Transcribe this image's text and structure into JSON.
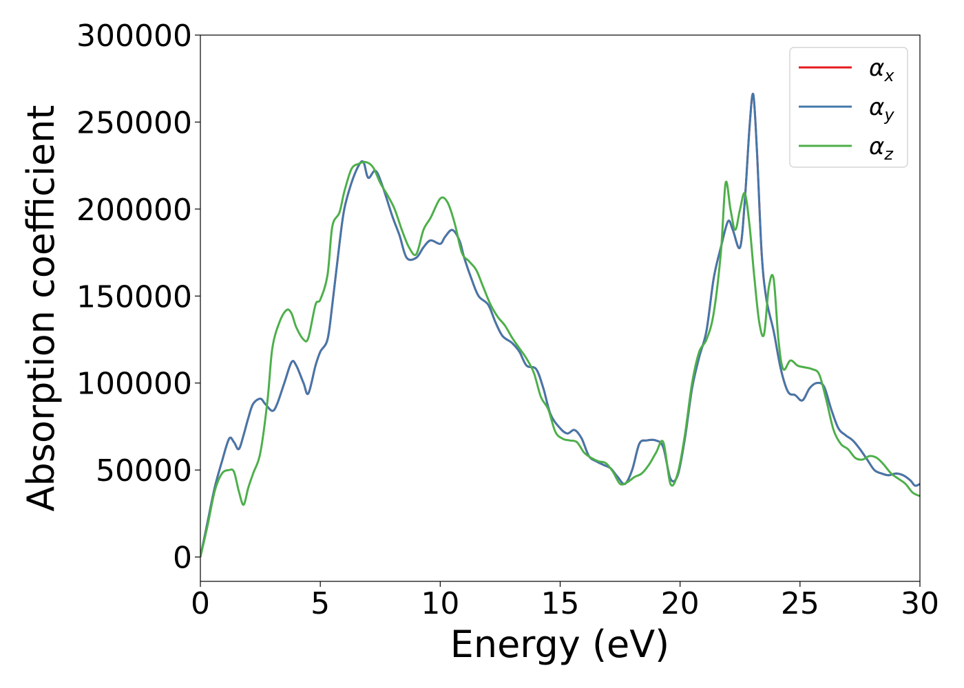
{
  "chart_data": {
    "type": "line",
    "title": "",
    "xlabel": "Energy (eV)",
    "ylabel": "Absorption coefficient",
    "xlim": [
      0,
      30
    ],
    "ylim": [
      -14000,
      300000
    ],
    "xticks": [
      0,
      5,
      10,
      15,
      20,
      25,
      30
    ],
    "xtick_labels": [
      "0",
      "5",
      "10",
      "15",
      "20",
      "25",
      "30"
    ],
    "yticks": [
      0,
      50000,
      100000,
      150000,
      200000,
      250000,
      300000
    ],
    "ytick_labels": [
      "0",
      "50000",
      "100000",
      "150000",
      "200000",
      "250000",
      "300000"
    ],
    "grid": false,
    "legend_position": "top-right",
    "series": [
      {
        "name": "α",
        "subscript": "x",
        "color": "#e41a1c",
        "x": [
          0,
          0.3,
          0.6,
          0.9,
          1.2,
          1.4,
          1.6,
          1.8,
          2.0,
          2.2,
          2.5,
          2.7,
          3.0,
          3.2,
          3.5,
          3.8,
          4.0,
          4.3,
          4.5,
          4.8,
          5.0,
          5.3,
          5.5,
          5.8,
          6.0,
          6.3,
          6.6,
          6.8,
          7.0,
          7.3,
          7.6,
          8.0,
          8.3,
          8.6,
          9.0,
          9.3,
          9.6,
          10.0,
          10.2,
          10.5,
          10.8,
          11.0,
          11.3,
          11.6,
          12.0,
          12.3,
          12.6,
          13.0,
          13.3,
          13.6,
          14.0,
          14.3,
          14.6,
          15.0,
          15.3,
          15.6,
          15.9,
          16.2,
          16.5,
          16.8,
          17.1,
          17.4,
          17.7,
          18.0,
          18.3,
          18.6,
          19.0,
          19.3,
          19.6,
          19.9,
          20.2,
          20.5,
          20.8,
          21.1,
          21.4,
          21.7,
          22.0,
          22.2,
          22.5,
          22.7,
          22.9,
          23.05,
          23.2,
          23.4,
          23.6,
          23.9,
          24.2,
          24.5,
          24.8,
          25.1,
          25.4,
          25.7,
          26.0,
          26.3,
          26.6,
          26.9,
          27.2,
          27.5,
          27.8,
          28.1,
          28.4,
          28.7,
          29.0,
          29.3,
          29.6,
          29.8,
          30.0
        ],
        "values": [
          0,
          20000,
          40000,
          55000,
          68000,
          66000,
          62000,
          70000,
          80000,
          88000,
          91000,
          88000,
          84000,
          88000,
          100000,
          112000,
          110000,
          100000,
          94000,
          110000,
          118000,
          125000,
          145000,
          180000,
          200000,
          215000,
          225000,
          227000,
          218000,
          222000,
          213000,
          196000,
          185000,
          172000,
          172000,
          178000,
          182000,
          180000,
          184000,
          188000,
          182000,
          172000,
          160000,
          150000,
          145000,
          135000,
          127000,
          123000,
          118000,
          110000,
          108000,
          97000,
          82000,
          74000,
          71000,
          73000,
          68000,
          58000,
          55000,
          53000,
          51000,
          46000,
          42000,
          50000,
          65000,
          67000,
          67000,
          63000,
          45000,
          47000,
          68000,
          97000,
          115000,
          130000,
          160000,
          178000,
          193000,
          188000,
          178000,
          205000,
          248000,
          266000,
          235000,
          175000,
          148000,
          130000,
          108000,
          95000,
          93000,
          90000,
          97000,
          100000,
          98000,
          85000,
          74000,
          70000,
          67000,
          62000,
          56000,
          50000,
          48000,
          47000,
          48000,
          47000,
          44000,
          41000,
          42000
        ]
      },
      {
        "name": "α",
        "subscript": "y",
        "color": "#4477aa",
        "x": [
          0,
          0.3,
          0.6,
          0.9,
          1.2,
          1.4,
          1.6,
          1.8,
          2.0,
          2.2,
          2.5,
          2.7,
          3.0,
          3.2,
          3.5,
          3.8,
          4.0,
          4.3,
          4.5,
          4.8,
          5.0,
          5.3,
          5.5,
          5.8,
          6.0,
          6.3,
          6.6,
          6.8,
          7.0,
          7.3,
          7.6,
          8.0,
          8.3,
          8.6,
          9.0,
          9.3,
          9.6,
          10.0,
          10.2,
          10.5,
          10.8,
          11.0,
          11.3,
          11.6,
          12.0,
          12.3,
          12.6,
          13.0,
          13.3,
          13.6,
          14.0,
          14.3,
          14.6,
          15.0,
          15.3,
          15.6,
          15.9,
          16.2,
          16.5,
          16.8,
          17.1,
          17.4,
          17.7,
          18.0,
          18.3,
          18.6,
          19.0,
          19.3,
          19.6,
          19.9,
          20.2,
          20.5,
          20.8,
          21.1,
          21.4,
          21.7,
          22.0,
          22.2,
          22.5,
          22.7,
          22.9,
          23.05,
          23.2,
          23.4,
          23.6,
          23.9,
          24.2,
          24.5,
          24.8,
          25.1,
          25.4,
          25.7,
          26.0,
          26.3,
          26.6,
          26.9,
          27.2,
          27.5,
          27.8,
          28.1,
          28.4,
          28.7,
          29.0,
          29.3,
          29.6,
          29.8,
          30.0
        ],
        "values": [
          0,
          20000,
          40000,
          55000,
          68000,
          66000,
          62000,
          70000,
          80000,
          88000,
          91000,
          88000,
          84000,
          88000,
          100000,
          112000,
          110000,
          100000,
          94000,
          110000,
          118000,
          125000,
          145000,
          180000,
          200000,
          215000,
          225000,
          227000,
          218000,
          222000,
          213000,
          196000,
          185000,
          172000,
          172000,
          178000,
          182000,
          180000,
          184000,
          188000,
          182000,
          172000,
          160000,
          150000,
          145000,
          135000,
          127000,
          123000,
          118000,
          110000,
          108000,
          97000,
          82000,
          74000,
          71000,
          73000,
          68000,
          58000,
          55000,
          53000,
          51000,
          46000,
          42000,
          50000,
          65000,
          67000,
          67000,
          63000,
          45000,
          47000,
          68000,
          97000,
          115000,
          130000,
          160000,
          178000,
          193000,
          188000,
          178000,
          205000,
          248000,
          266000,
          235000,
          175000,
          148000,
          130000,
          108000,
          95000,
          93000,
          90000,
          97000,
          100000,
          98000,
          85000,
          74000,
          70000,
          67000,
          62000,
          56000,
          50000,
          48000,
          47000,
          48000,
          47000,
          44000,
          41000,
          42000
        ]
      },
      {
        "name": "α",
        "subscript": "z",
        "color": "#4daf4a",
        "x": [
          0,
          0.3,
          0.6,
          0.9,
          1.2,
          1.4,
          1.6,
          1.8,
          2.0,
          2.2,
          2.5,
          2.8,
          3.0,
          3.3,
          3.6,
          3.8,
          4.0,
          4.3,
          4.5,
          4.8,
          5.0,
          5.3,
          5.5,
          5.8,
          6.0,
          6.3,
          6.6,
          6.9,
          7.2,
          7.5,
          7.8,
          8.1,
          8.4,
          8.7,
          9.0,
          9.3,
          9.6,
          10.0,
          10.3,
          10.6,
          10.9,
          11.2,
          11.5,
          11.8,
          12.1,
          12.4,
          12.7,
          13.0,
          13.3,
          13.6,
          13.9,
          14.2,
          14.5,
          14.8,
          15.1,
          15.4,
          15.7,
          16.0,
          16.3,
          16.6,
          16.9,
          17.2,
          17.5,
          17.8,
          18.1,
          18.4,
          18.7,
          19.0,
          19.3,
          19.6,
          19.9,
          20.2,
          20.5,
          20.8,
          21.1,
          21.4,
          21.7,
          21.9,
          22.1,
          22.3,
          22.5,
          22.7,
          22.9,
          23.1,
          23.3,
          23.5,
          23.7,
          23.9,
          24.1,
          24.3,
          24.6,
          24.9,
          25.2,
          25.5,
          25.8,
          26.1,
          26.4,
          26.7,
          27.0,
          27.3,
          27.6,
          27.9,
          28.2,
          28.5,
          28.8,
          29.1,
          29.4,
          29.7,
          30.0
        ],
        "values": [
          0,
          18000,
          38000,
          48000,
          50000,
          49000,
          38000,
          30000,
          40000,
          48000,
          60000,
          90000,
          120000,
          135000,
          142000,
          140000,
          132000,
          125000,
          126000,
          145000,
          148000,
          162000,
          190000,
          198000,
          210000,
          223000,
          226000,
          227000,
          224000,
          215000,
          208000,
          200000,
          188000,
          178000,
          174000,
          188000,
          195000,
          206000,
          204000,
          192000,
          175000,
          170000,
          165000,
          155000,
          145000,
          138000,
          133000,
          126000,
          120000,
          114000,
          106000,
          92000,
          85000,
          72000,
          68000,
          67000,
          66000,
          60000,
          57000,
          55000,
          54000,
          49000,
          42000,
          43000,
          46000,
          48000,
          53000,
          60000,
          66000,
          42000,
          48000,
          70000,
          100000,
          118000,
          125000,
          140000,
          175000,
          215000,
          200000,
          188000,
          200000,
          209000,
          190000,
          160000,
          135000,
          128000,
          155000,
          160000,
          125000,
          108000,
          113000,
          110000,
          109000,
          108000,
          105000,
          90000,
          73000,
          65000,
          62000,
          57000,
          56000,
          58000,
          57000,
          53000,
          48000,
          45000,
          42000,
          37000,
          35000
        ]
      }
    ]
  }
}
